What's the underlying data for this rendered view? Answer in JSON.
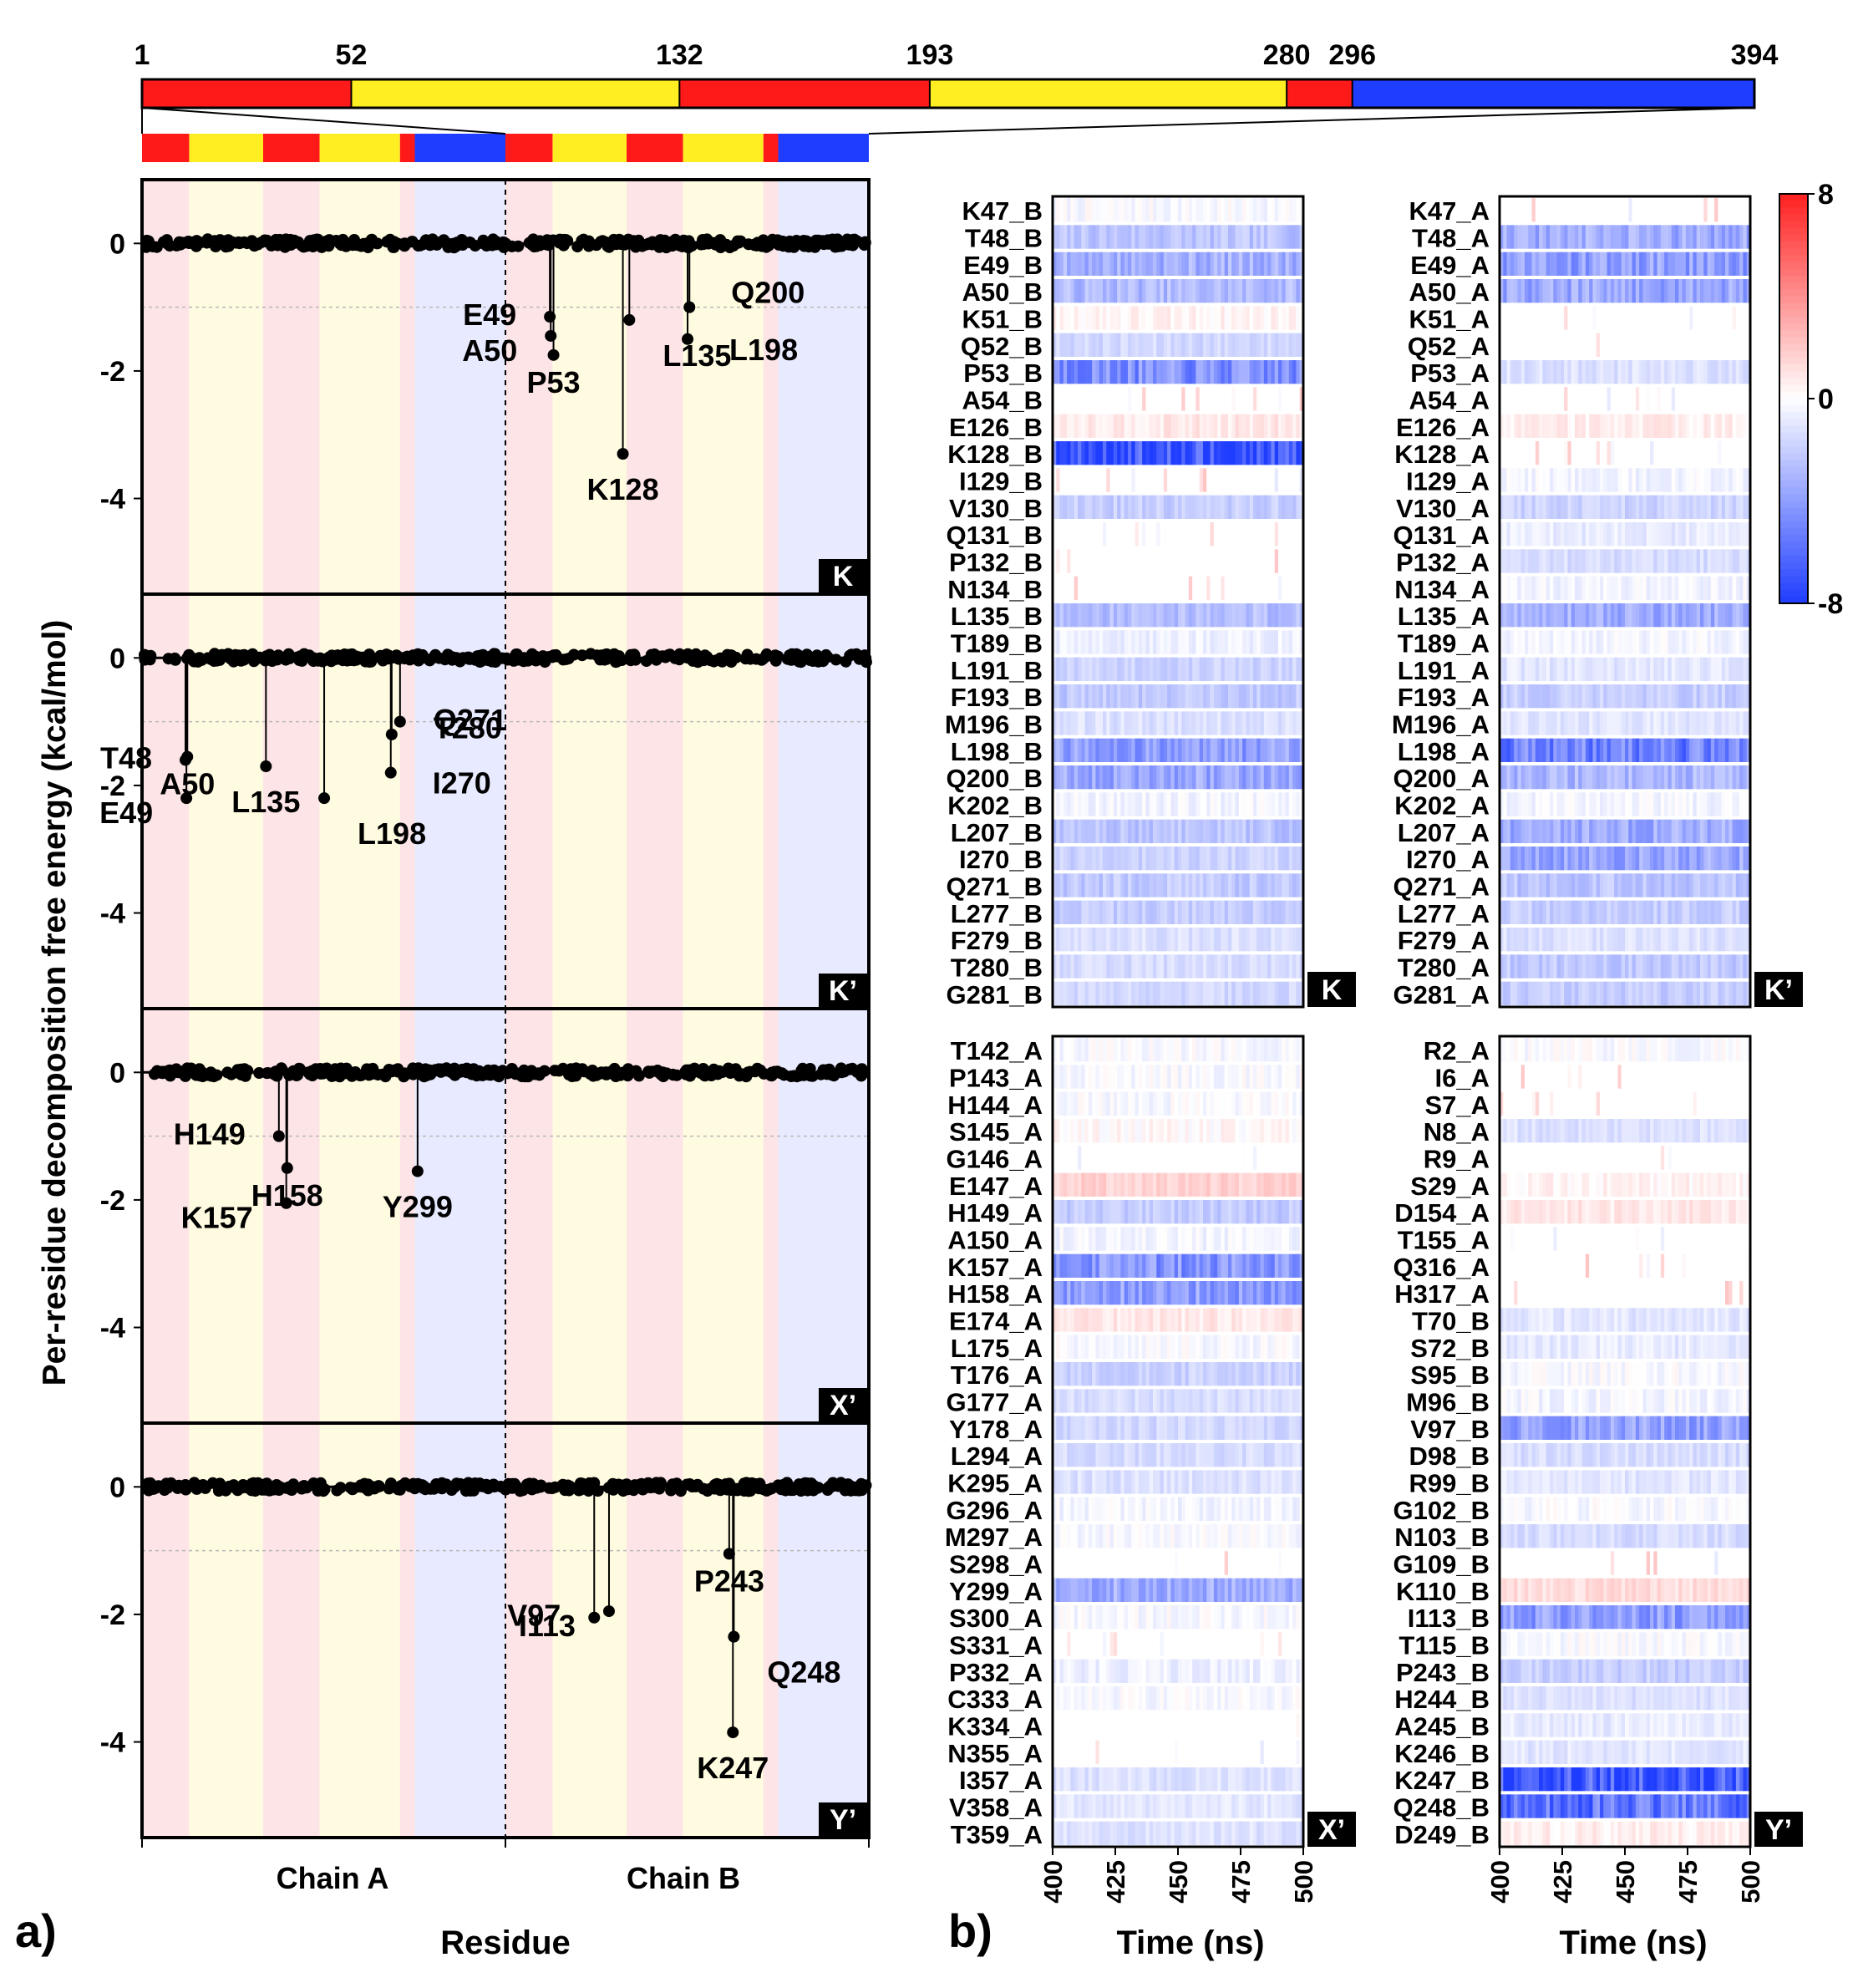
{
  "figure": {
    "panel_a_letter": "a)",
    "panel_b_letter": "b)",
    "y_axis_label": "Per-residue decomposition free energy (kcal/mol)",
    "x_axis_label": "Residue",
    "chain_a_label": "Chain A",
    "chain_b_label": "Chain B",
    "time_label": "Time (ns)"
  },
  "colors": {
    "red": "#ff1a1a",
    "yellow": "#ffee22",
    "blue": "#1f3dff",
    "band_red": "#fde4e6",
    "band_yellow": "#fffbe0",
    "band_blue": "#e8ebff",
    "heat_neg": "#1f3dff",
    "heat_pos": "#ff2020"
  },
  "domain_bar": {
    "ticks": [
      "1",
      "52",
      "132",
      "193",
      "280",
      "296",
      "394"
    ],
    "start": 1,
    "end": 394,
    "segments": [
      {
        "from": 1,
        "to": 52,
        "color": "red"
      },
      {
        "from": 52,
        "to": 132,
        "color": "yellow"
      },
      {
        "from": 132,
        "to": 193,
        "color": "red"
      },
      {
        "from": 193,
        "to": 280,
        "color": "yellow"
      },
      {
        "from": 280,
        "to": 296,
        "color": "red"
      },
      {
        "from": 296,
        "to": 394,
        "color": "blue"
      }
    ]
  },
  "chart_data": [
    {
      "type": "scatter",
      "panel": "K",
      "ylim": [
        -5.5,
        1
      ],
      "yticks": [
        "0",
        "-2",
        "-4"
      ],
      "chain_boundary": 394,
      "residue_range": [
        1,
        788
      ],
      "labeled_points": [
        {
          "label": "E49",
          "chain": "B",
          "residue": 49,
          "value": -1.15
        },
        {
          "label": "A50",
          "chain": "B",
          "residue": 50,
          "value": -1.45
        },
        {
          "label": "P53",
          "chain": "B",
          "residue": 53,
          "value": -1.75
        },
        {
          "label": "K128",
          "chain": "B",
          "residue": 128,
          "value": -3.3
        },
        {
          "label": "L135",
          "chain": "B",
          "residue": 135,
          "value": -1.2
        },
        {
          "label": "L198",
          "chain": "B",
          "residue": 198,
          "value": -1.5
        },
        {
          "label": "Q200",
          "chain": "B",
          "residue": 200,
          "value": -1.0
        }
      ]
    },
    {
      "type": "scatter",
      "panel": "K’",
      "ylim": [
        -5.5,
        1
      ],
      "yticks": [
        "0",
        "-2",
        "-4"
      ],
      "chain_boundary": 394,
      "residue_range": [
        1,
        788
      ],
      "labeled_points": [
        {
          "label": "T48",
          "chain": "A",
          "residue": 48,
          "value": -1.6
        },
        {
          "label": "E49",
          "chain": "A",
          "residue": 49,
          "value": -2.2
        },
        {
          "label": "A50",
          "chain": "A",
          "residue": 50,
          "value": -1.55
        },
        {
          "label": "L135",
          "chain": "A",
          "residue": 135,
          "value": -1.7
        },
        {
          "label": "L198",
          "chain": "A",
          "residue": 198,
          "value": -2.2
        },
        {
          "label": "I270",
          "chain": "A",
          "residue": 270,
          "value": -1.8
        },
        {
          "label": "Q271",
          "chain": "A",
          "residue": 271,
          "value": -1.2
        },
        {
          "label": "T280",
          "chain": "A",
          "residue": 280,
          "value": -1.0
        }
      ]
    },
    {
      "type": "scatter",
      "panel": "X’",
      "ylim": [
        -5.5,
        1
      ],
      "yticks": [
        "0",
        "-2",
        "-4"
      ],
      "chain_boundary": 394,
      "residue_range": [
        1,
        788
      ],
      "labeled_points": [
        {
          "label": "H149",
          "chain": "A",
          "residue": 149,
          "value": -1.0
        },
        {
          "label": "K157",
          "chain": "A",
          "residue": 157,
          "value": -2.05
        },
        {
          "label": "H158",
          "chain": "A",
          "residue": 158,
          "value": -1.5
        },
        {
          "label": "Y299",
          "chain": "A",
          "residue": 299,
          "value": -1.55
        }
      ]
    },
    {
      "type": "scatter",
      "panel": "Y’",
      "ylim": [
        -5.5,
        1
      ],
      "yticks": [
        "0",
        "-2",
        "-4"
      ],
      "chain_boundary": 394,
      "residue_range": [
        1,
        788
      ],
      "labeled_points": [
        {
          "label": "V97",
          "chain": "B",
          "residue": 97,
          "value": -2.05
        },
        {
          "label": "I113",
          "chain": "B",
          "residue": 113,
          "value": -1.95
        },
        {
          "label": "P243",
          "chain": "B",
          "residue": 243,
          "value": -1.05
        },
        {
          "label": "K247",
          "chain": "B",
          "residue": 247,
          "value": -3.85
        },
        {
          "label": "Q248",
          "chain": "B",
          "residue": 248,
          "value": -2.35
        }
      ]
    },
    {
      "type": "heatmap",
      "panel": "K",
      "x_ticks": [
        "400",
        "425",
        "450",
        "475",
        "500"
      ],
      "rows": [
        "K47_B",
        "T48_B",
        "E49_B",
        "A50_B",
        "K51_B",
        "Q52_B",
        "P53_B",
        "A54_B",
        "E126_B",
        "K128_B",
        "I129_B",
        "V130_B",
        "Q131_B",
        "P132_B",
        "N134_B",
        "L135_B",
        "T189_B",
        "L191_B",
        "F193_B",
        "M196_B",
        "L198_B",
        "Q200_B",
        "K202_B",
        "L207_B",
        "I270_B",
        "Q271_B",
        "L277_B",
        "F279_B",
        "T280_B",
        "G281_B"
      ],
      "mean_values": [
        -0.1,
        -1.2,
        -1.6,
        -1.4,
        0.2,
        -0.8,
        -2.3,
        0,
        0.4,
        -3.6,
        0,
        -1.0,
        0,
        0,
        0,
        -1.3,
        -0.3,
        -0.9,
        -1.1,
        -0.6,
        -2.0,
        -1.8,
        -0.2,
        -1.2,
        -0.9,
        -1.1,
        -1.0,
        -0.6,
        -0.7,
        -0.8
      ]
    },
    {
      "type": "heatmap",
      "panel": "K’",
      "x_ticks": [
        "400",
        "425",
        "450",
        "475",
        "500"
      ],
      "rows": [
        "K47_A",
        "T48_A",
        "E49_A",
        "A50_A",
        "K51_A",
        "Q52_A",
        "P53_A",
        "A54_A",
        "E126_A",
        "K128_A",
        "I129_A",
        "V130_A",
        "Q131_A",
        "P132_A",
        "N134_A",
        "L135_A",
        "T189_A",
        "L191_A",
        "F193_A",
        "M196_A",
        "L198_A",
        "Q200_A",
        "K202_A",
        "L207_A",
        "I270_A",
        "Q271_A",
        "L277_A",
        "F279_A",
        "T280_A",
        "G281_A"
      ],
      "mean_values": [
        0,
        -1.7,
        -2.0,
        -1.8,
        0,
        0,
        -0.6,
        0,
        0.3,
        0,
        -0.2,
        -0.9,
        -0.4,
        -0.7,
        -0.2,
        -1.7,
        -0.2,
        -0.5,
        -1.0,
        -0.5,
        -2.6,
        -1.5,
        -0.2,
        -1.7,
        -1.8,
        -1.2,
        -1.0,
        -0.6,
        -1.1,
        -1.0
      ]
    },
    {
      "type": "heatmap",
      "panel": "X’",
      "x_ticks": [
        "400",
        "425",
        "450",
        "475",
        "500"
      ],
      "rows": [
        "T142_A",
        "P143_A",
        "H144_A",
        "S145_A",
        "G146_A",
        "E147_A",
        "H149_A",
        "A150_A",
        "K157_A",
        "H158_A",
        "E174_A",
        "L175_A",
        "T176_A",
        "G177_A",
        "Y178_A",
        "L294_A",
        "K295_A",
        "G296_A",
        "M297_A",
        "S298_A",
        "Y299_A",
        "S300_A",
        "S331_A",
        "P332_A",
        "C333_A",
        "K334_A",
        "N355_A",
        "I357_A",
        "V358_A",
        "T359_A"
      ],
      "mean_values": [
        -0.1,
        -0.1,
        -0.1,
        0.1,
        0,
        0.8,
        -1.1,
        -0.2,
        -2.2,
        -2.0,
        0.4,
        -0.1,
        -0.9,
        -0.7,
        -0.8,
        -0.7,
        -0.6,
        -0.2,
        -0.1,
        0,
        -1.7,
        -0.1,
        0,
        -0.3,
        -0.1,
        0,
        0,
        -0.6,
        -0.5,
        -0.6
      ]
    },
    {
      "type": "heatmap",
      "panel": "Y’",
      "x_ticks": [
        "400",
        "425",
        "450",
        "475",
        "500"
      ],
      "rows": [
        "R2_A",
        "I6_A",
        "S7_A",
        "N8_A",
        "R9_A",
        "S29_A",
        "D154_A",
        "T155_A",
        "Q316_A",
        "H317_A",
        "T70_B",
        "S72_B",
        "S95_B",
        "M96_B",
        "V97_B",
        "D98_B",
        "R99_B",
        "G102_B",
        "N103_B",
        "G109_B",
        "K110_B",
        "I113_B",
        "T115_B",
        "P243_B",
        "H244_B",
        "A245_B",
        "K246_B",
        "K247_B",
        "Q248_B",
        "D249_B"
      ],
      "mean_values": [
        -0.1,
        0,
        0,
        -0.6,
        0,
        0.2,
        0.4,
        0,
        0,
        0,
        -0.5,
        -0.4,
        -0.1,
        -0.2,
        -1.9,
        -0.7,
        -0.5,
        -0.1,
        -0.7,
        0,
        0.6,
        -2.0,
        -0.1,
        -1.0,
        -0.6,
        -0.4,
        -0.5,
        -3.5,
        -2.8,
        0.3
      ]
    }
  ],
  "colorbar": {
    "max_label": "8",
    "mid_label": "0",
    "min_label": "-8",
    "vmin": -8,
    "vmax": 8
  }
}
